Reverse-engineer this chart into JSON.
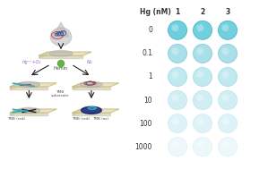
{
  "hg_label": "Hg (nM)",
  "col_headers": [
    "1",
    "2",
    "3"
  ],
  "row_labels": [
    "0",
    "0.1",
    "1",
    "10",
    "100",
    "1000"
  ],
  "bg_color": "#ffffff",
  "dot_fill_colors": [
    [
      "#6dcfde",
      "#72d0de",
      "#72d0de"
    ],
    [
      "#a8dfe8",
      "#a8dfe8",
      "#a8dfe8"
    ],
    [
      "#c0e9f0",
      "#c0e9f0",
      "#c0e9f0"
    ],
    [
      "#d0eef3",
      "#d0eef3",
      "#d0eef3"
    ],
    [
      "#ddf3f7",
      "#ddf3f7",
      "#ddf3f7"
    ],
    [
      "#edf8fa",
      "#edf8fa",
      "#edf8fa"
    ]
  ],
  "dot_edge_colors": [
    [
      "#45b8cc",
      "#45b8cc",
      "#45b8cc"
    ],
    [
      "#88cedd",
      "#88cedd",
      "#88cedd"
    ],
    [
      "#a8dde8",
      "#a8dde8",
      "#a8dde8"
    ],
    [
      "#bce5ee",
      "#bce5ee",
      "#bce5ee"
    ],
    [
      "#cceef4",
      "#cceef4",
      "#cceef4"
    ],
    [
      "#ddf3f7",
      "#ddf3f7",
      "#ddf3f7"
    ]
  ],
  "label_fontsize": 5.5,
  "header_fontsize": 5.5,
  "label_color": "#333333",
  "platform_color": "#e8dfc0",
  "platform_edge_color": "#c8b870",
  "arrow_color": "#222222",
  "drop_color": "#b8b8b8",
  "hemin_color": "#55aa33",
  "hemin_label_color": "#335533",
  "hgno_color": "#9966cc",
  "blue_dna_color": "#2255aa",
  "red_dna_color": "#cc2222",
  "cyan_dna_color": "#33aabb",
  "dark_blue_color": "#112277",
  "grey_spot_color": "#aaaaaa",
  "tmb_label_color": "#555555"
}
